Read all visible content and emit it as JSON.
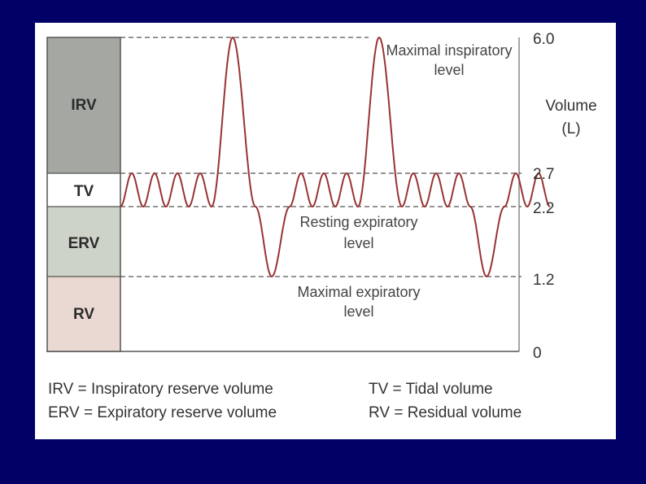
{
  "colors": {
    "background": "#000066",
    "panel": "#ffffff",
    "irv": "#a5a8a2",
    "tv": "#ffffff",
    "erv": "#cdd3c8",
    "rv": "#ead9d3",
    "trace": "#993333",
    "dashed": "#555555"
  },
  "boxes": {
    "irv": "IRV",
    "tv": "TV",
    "erv": "ERV",
    "rv": "RV"
  },
  "annotations": {
    "max_insp_1": "Maximal inspiratory",
    "max_insp_2": "level",
    "rest_exp_1": "Resting expiratory",
    "rest_exp_2": "level",
    "max_exp_1": "Maximal expiratory",
    "max_exp_2": "level"
  },
  "axis": {
    "title_1": "Volume",
    "title_2": "(L)",
    "ticks": [
      "6.0",
      "2.7",
      "2.2",
      "1.2",
      "0"
    ]
  },
  "legend": {
    "irv": "IRV = Inspiratory reserve volume",
    "erv": "ERV = Expiratory reserve volume",
    "tv": "TV = Tidal volume",
    "rv": "RV = Residual volume"
  }
}
